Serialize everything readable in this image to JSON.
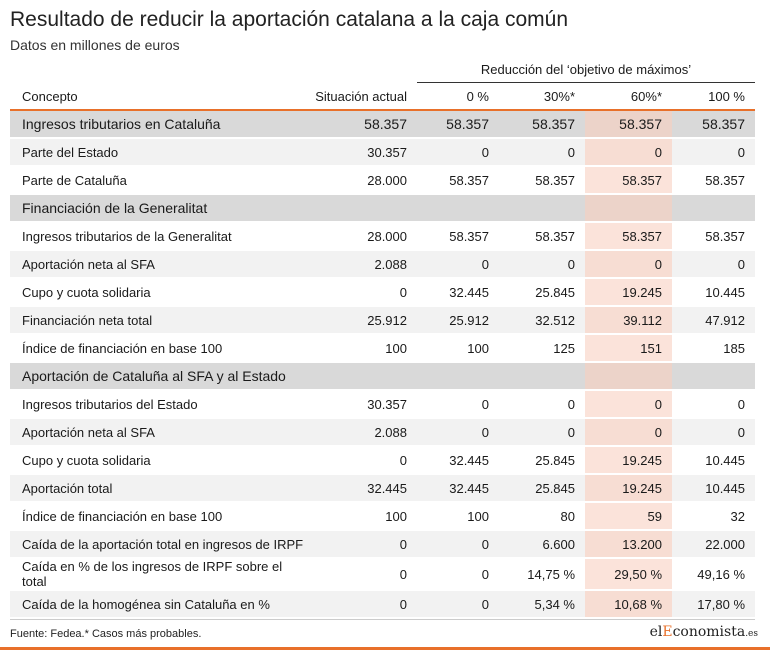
{
  "title": "Resultado de reducir la aportación catalana a la caja común",
  "subtitle": "Datos en millones de euros",
  "group_header": "Reducción del ‘objetivo de máximos’",
  "columns": [
    "Concepto",
    "Situación actual",
    "0 %",
    "30%*",
    "60%*",
    "100 %"
  ],
  "rows": [
    {
      "type": "section",
      "cells": [
        "Ingresos tributarios en Cataluña",
        "58.357",
        "58.357",
        "58.357",
        "58.357",
        "58.357"
      ]
    },
    {
      "type": "alt",
      "cells": [
        "Parte del Estado",
        "30.357",
        "0",
        "0",
        "0",
        "0"
      ]
    },
    {
      "type": "plain",
      "cells": [
        "Parte de Cataluña",
        "28.000",
        "58.357",
        "58.357",
        "58.357",
        "58.357"
      ]
    },
    {
      "type": "section",
      "cells": [
        "Financiación de la Generalitat",
        "",
        "",
        "",
        "",
        ""
      ]
    },
    {
      "type": "plain",
      "cells": [
        "Ingresos tributarios de la Generalitat",
        "28.000",
        "58.357",
        "58.357",
        "58.357",
        "58.357"
      ]
    },
    {
      "type": "alt",
      "cells": [
        "Aportación neta al SFA",
        "2.088",
        "0",
        "0",
        "0",
        "0"
      ]
    },
    {
      "type": "plain",
      "cells": [
        "Cupo y cuota solidaria",
        "0",
        "32.445",
        "25.845",
        "19.245",
        "10.445"
      ]
    },
    {
      "type": "alt",
      "cells": [
        "Financiación neta total",
        "25.912",
        "25.912",
        "32.512",
        "39.112",
        "47.912"
      ]
    },
    {
      "type": "plain",
      "cells": [
        "Índice de financiación en base 100",
        "100",
        "100",
        "125",
        "151",
        "185"
      ]
    },
    {
      "type": "section",
      "cells": [
        "Aportación de Cataluña al SFA y al Estado",
        "",
        "",
        "",
        "",
        ""
      ]
    },
    {
      "type": "plain",
      "cells": [
        "Ingresos tributarios del Estado",
        "30.357",
        "0",
        "0",
        "0",
        "0"
      ]
    },
    {
      "type": "alt",
      "cells": [
        "Aportación neta al SFA",
        "2.088",
        "0",
        "0",
        "0",
        "0"
      ]
    },
    {
      "type": "plain",
      "cells": [
        "Cupo y cuota solidaria",
        "0",
        "32.445",
        "25.845",
        "19.245",
        "10.445"
      ]
    },
    {
      "type": "alt",
      "cells": [
        "Aportación total",
        "32.445",
        "32.445",
        "25.845",
        "19.245",
        "10.445"
      ]
    },
    {
      "type": "plain",
      "cells": [
        "Índice de financiación en base 100",
        "100",
        "100",
        "80",
        "59",
        "32"
      ]
    },
    {
      "type": "alt",
      "cells": [
        "Caída de la aportación total en ingresos de IRPF",
        "0",
        "0",
        "6.600",
        "13.200",
        "22.000"
      ]
    },
    {
      "type": "plain",
      "cells": [
        "Caída en % de los ingresos de IRPF sobre el total",
        "0",
        "0",
        "14,75 %",
        "29,50 %",
        "49,16 %"
      ]
    },
    {
      "type": "alt",
      "cells": [
        "Caída de la homogénea sin Cataluña en %",
        "0",
        "0",
        "5,34 %",
        "10,68 %",
        "17,80 %"
      ]
    }
  ],
  "highlight_column": 4,
  "highlight_color": "#fbe3da",
  "accent_color": "#e8702a",
  "source": "Fuente: Fedea.* Casos más probables.",
  "logo": {
    "part1": "el",
    "part2": "E",
    "part3": "conomista",
    "part4": ".es"
  }
}
